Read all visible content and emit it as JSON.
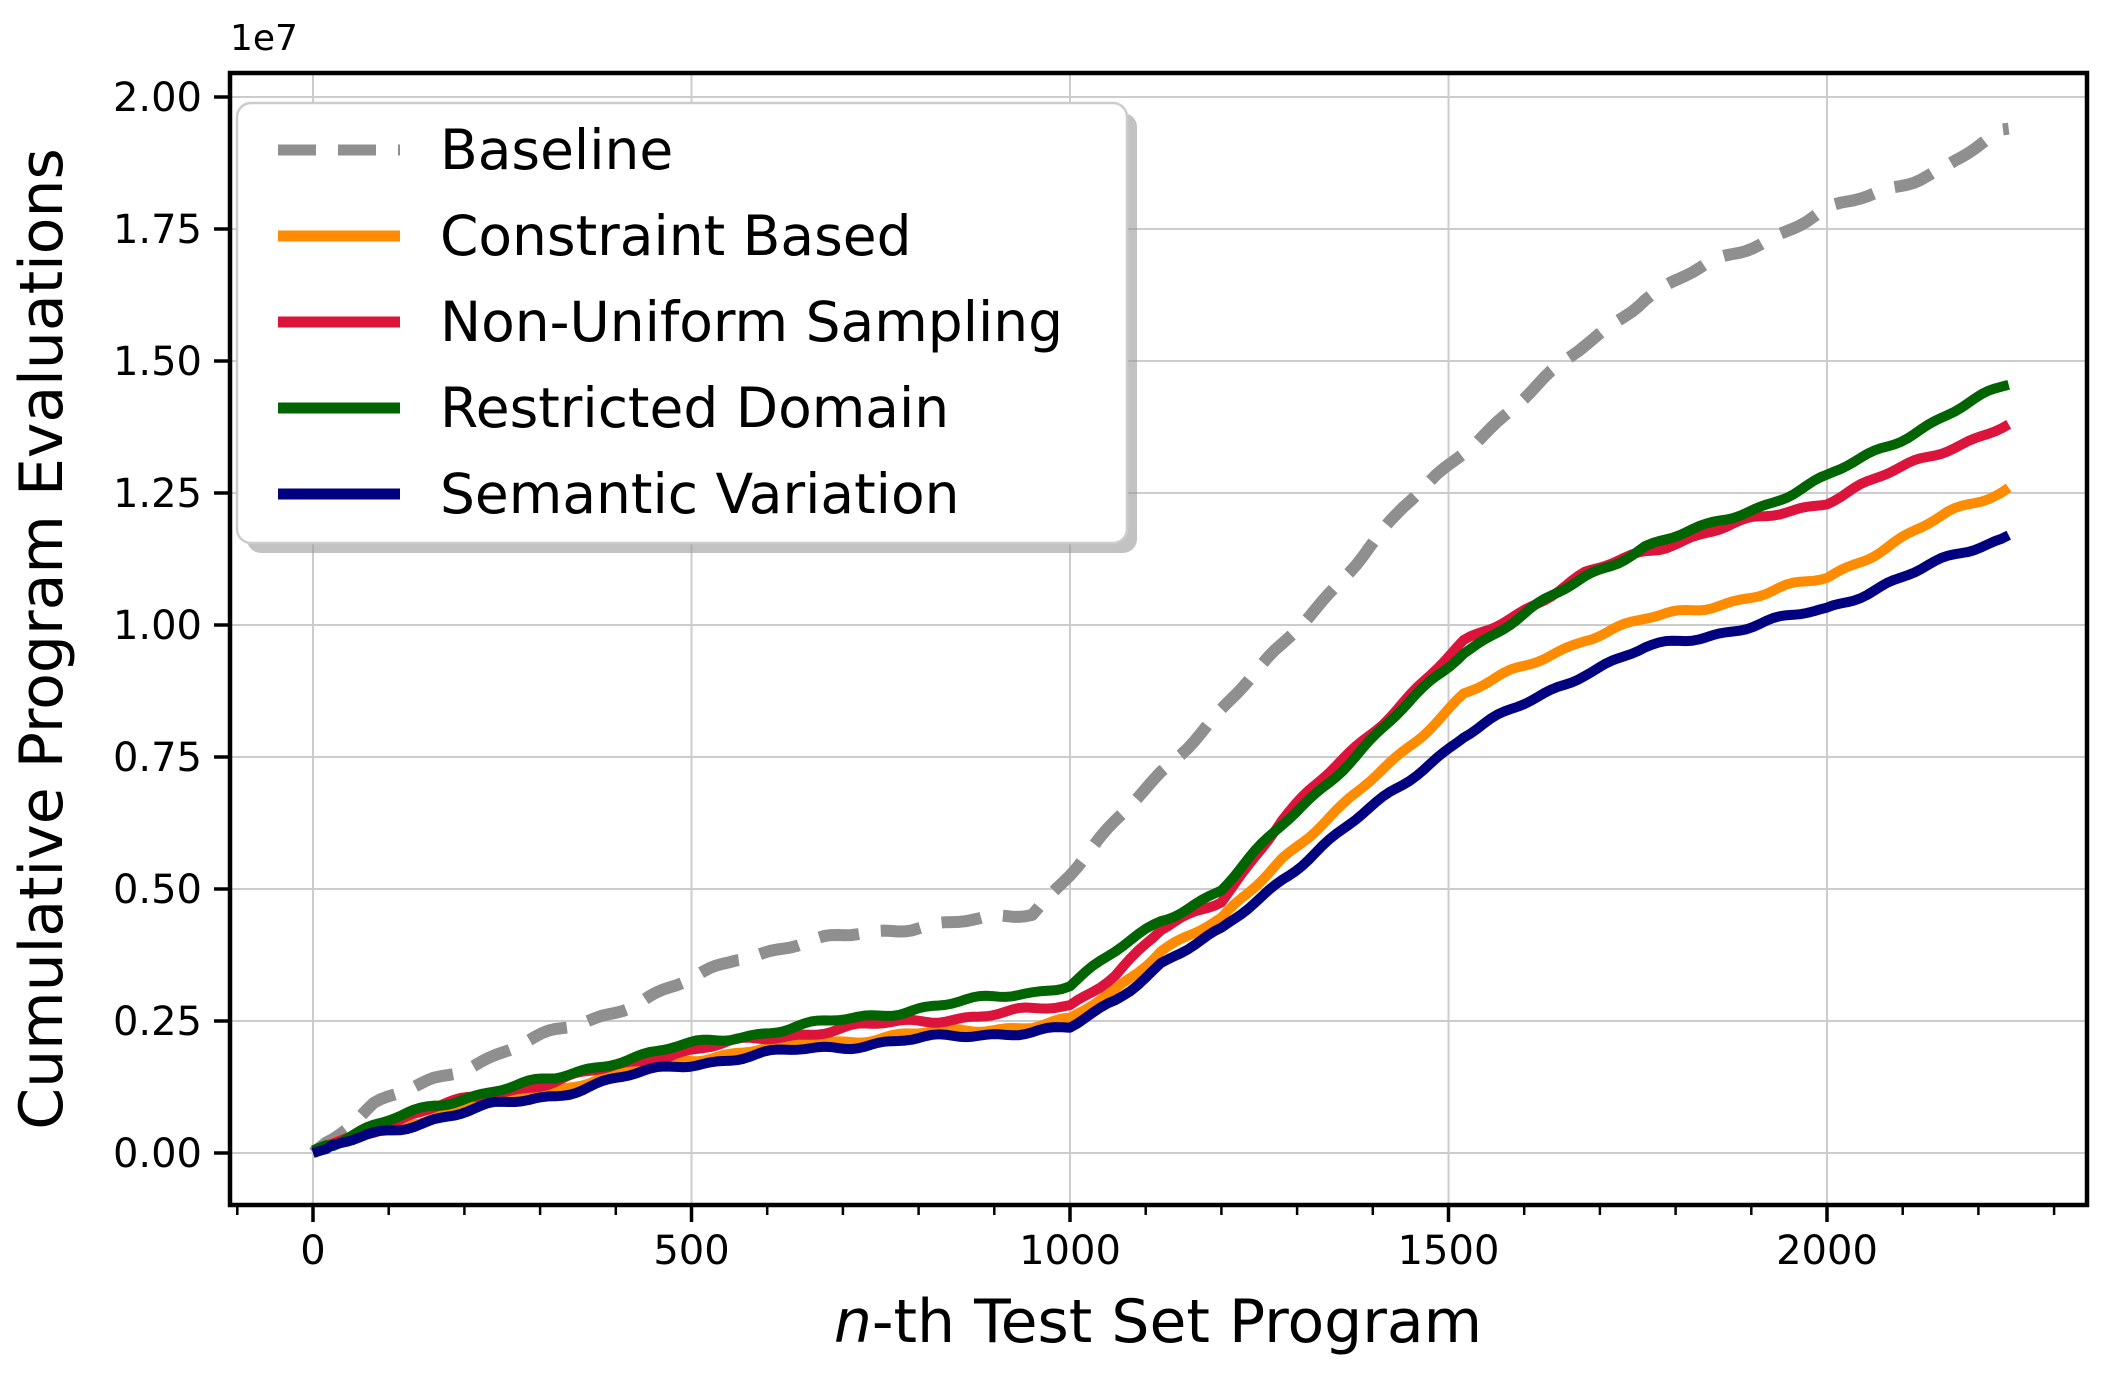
{
  "figure": {
    "offset_text": "1e7",
    "ylabel": "Cumulative Program Evaluations",
    "xlabel_italic": "n",
    "xlabel_rest": "-th Test Set Program",
    "background": "#ffffff",
    "grid_color": "#cccccc",
    "legend_border_color": "#cccccc",
    "legend_shadow_color": "#9a9a9a"
  },
  "chart_data": {
    "type": "line",
    "title": "",
    "xlabel": "n-th Test Set Program",
    "ylabel": "Cumulative Program Evaluations",
    "y_unit_multiplier": "1e7",
    "grid": true,
    "legend_position": "upper left",
    "xlim": [
      -110,
      2345
    ],
    "ylim_1e7": [
      -0.1,
      2.05
    ],
    "x_ticks": [
      0,
      500,
      1000,
      1500,
      2000
    ],
    "x_tick_labels": [
      "0",
      "500",
      "1000",
      "1500",
      "2000"
    ],
    "x_minor_tick_step": 100,
    "y_ticks_1e7": [
      0.0,
      0.25,
      0.5,
      0.75,
      1.0,
      1.25,
      1.5,
      1.75,
      2.0
    ],
    "y_tick_labels": [
      "0.00",
      "0.25",
      "0.50",
      "0.75",
      "1.00",
      "1.25",
      "1.50",
      "1.75",
      "2.00"
    ],
    "x": [
      0,
      80,
      160,
      240,
      320,
      400,
      480,
      560,
      640,
      720,
      800,
      880,
      950,
      1000,
      1060,
      1120,
      1200,
      1280,
      1360,
      1440,
      1520,
      1600,
      1680,
      1760,
      1840,
      1920,
      2000,
      2080,
      2160,
      2240
    ],
    "series": [
      {
        "name": "Baseline",
        "color": "#8f8f8f",
        "line_style": "dashed",
        "values_1e7": [
          0.0,
          0.09,
          0.14,
          0.185,
          0.23,
          0.27,
          0.315,
          0.37,
          0.395,
          0.415,
          0.43,
          0.44,
          0.455,
          0.53,
          0.625,
          0.72,
          0.84,
          0.96,
          1.09,
          1.22,
          1.33,
          1.43,
          1.53,
          1.62,
          1.68,
          1.73,
          1.785,
          1.825,
          1.87,
          1.94
        ]
      },
      {
        "name": "Constraint Based",
        "color": "#ff8c00",
        "line_style": "solid",
        "values_1e7": [
          0.0,
          0.04,
          0.07,
          0.1,
          0.12,
          0.15,
          0.175,
          0.19,
          0.205,
          0.215,
          0.225,
          0.235,
          0.24,
          0.25,
          0.31,
          0.385,
          0.44,
          0.56,
          0.655,
          0.76,
          0.87,
          0.92,
          0.975,
          1.01,
          1.035,
          1.06,
          1.09,
          1.15,
          1.21,
          1.26
        ]
      },
      {
        "name": "Non-Uniform Sampling",
        "color": "#dc143c",
        "line_style": "solid",
        "values_1e7": [
          0.005,
          0.045,
          0.085,
          0.115,
          0.135,
          0.165,
          0.19,
          0.21,
          0.225,
          0.24,
          0.25,
          0.26,
          0.27,
          0.28,
          0.34,
          0.42,
          0.48,
          0.63,
          0.745,
          0.855,
          0.965,
          1.03,
          1.095,
          1.14,
          1.175,
          1.205,
          1.235,
          1.285,
          1.335,
          1.38
        ]
      },
      {
        "name": "Restricted Domain",
        "color": "#006400",
        "line_style": "solid",
        "values_1e7": [
          0.005,
          0.05,
          0.09,
          0.12,
          0.14,
          0.175,
          0.2,
          0.22,
          0.24,
          0.255,
          0.275,
          0.29,
          0.305,
          0.32,
          0.38,
          0.44,
          0.5,
          0.62,
          0.73,
          0.84,
          0.95,
          1.02,
          1.09,
          1.15,
          1.185,
          1.23,
          1.28,
          1.34,
          1.4,
          1.455
        ]
      },
      {
        "name": "Semantic Variation",
        "color": "#000080",
        "line_style": "solid",
        "values_1e7": [
          0.0,
          0.035,
          0.065,
          0.09,
          0.11,
          0.14,
          0.165,
          0.18,
          0.195,
          0.205,
          0.215,
          0.225,
          0.23,
          0.235,
          0.29,
          0.36,
          0.42,
          0.52,
          0.61,
          0.7,
          0.79,
          0.85,
          0.91,
          0.955,
          0.98,
          1.005,
          1.03,
          1.08,
          1.125,
          1.17
        ]
      }
    ]
  }
}
